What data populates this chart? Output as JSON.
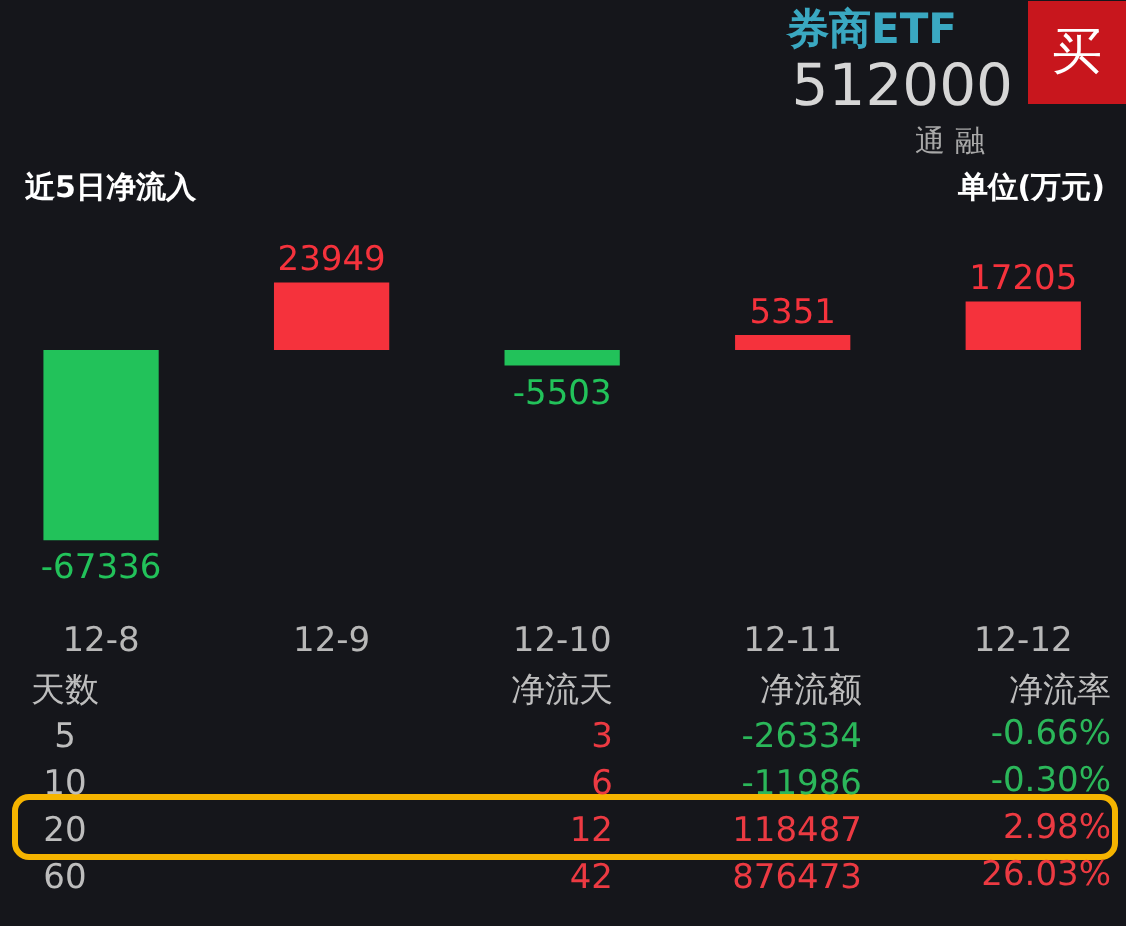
{
  "chart_data": [
    {
      "type": "bar",
      "title": "近5日净流入",
      "subtitle": "单位(万元)",
      "annotations": [
        "券商ETF",
        "512000",
        "通 融",
        "买"
      ],
      "categories": [
        "12-8",
        "12-9",
        "12-10",
        "12-11",
        "12-12"
      ],
      "values": [
        -67336,
        23949,
        -5503,
        5351,
        17205
      ],
      "colors": [
        "#22c25a",
        "#f5323c",
        "#22c25a",
        "#f5323c",
        "#f5323c"
      ],
      "data_labels": true,
      "tick_labels": "x"
    },
    {
      "type": "other",
      "categories": [
        "天数",
        "净流天",
        "净流额",
        "净流率"
      ],
      "y_categories": [
        "5",
        "10",
        "20",
        "60"
      ],
      "cell_labels": [
        [
          "3",
          "-26334",
          "-0.66%"
        ],
        [
          "6",
          "-11986",
          "-0.30%"
        ],
        [
          "12",
          "118487",
          "2.98%"
        ],
        [
          "42",
          "876473",
          "26.03%"
        ]
      ]
    }
  ]
}
